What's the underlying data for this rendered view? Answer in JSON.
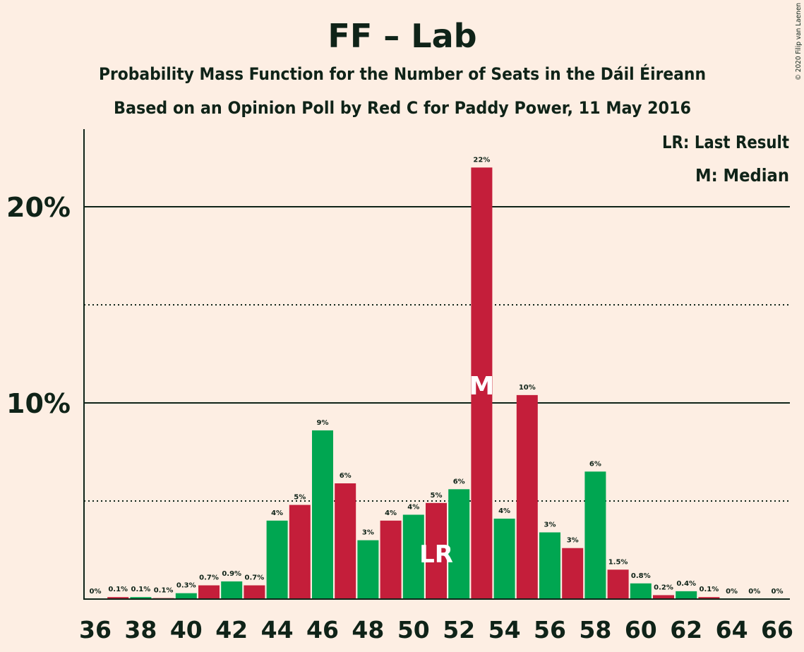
{
  "chart_data": {
    "type": "bar",
    "title": "FF – Lab",
    "subtitle1": "Probability Mass Function for the Number of Seats in the Dáil Éireann",
    "subtitle2": "Based on an Opinion Poll by Red C for Paddy Power, 11 May 2016",
    "copyright": "© 2020 Filip van Laenen",
    "legend": {
      "placement": "top-right",
      "entries": [
        "LR: Last Result",
        "M: Median"
      ]
    },
    "x": [
      36,
      37,
      38,
      39,
      40,
      41,
      42,
      43,
      44,
      45,
      46,
      47,
      48,
      49,
      50,
      51,
      52,
      53,
      54,
      55,
      56,
      57,
      58,
      59,
      60,
      61,
      62,
      63,
      64,
      65,
      66
    ],
    "values": [
      0,
      0.1,
      0.1,
      0.05,
      0.3,
      0.7,
      0.9,
      0.7,
      4.0,
      4.8,
      8.6,
      5.9,
      3.0,
      4.0,
      4.3,
      4.9,
      5.6,
      22.0,
      4.1,
      10.4,
      3.4,
      2.6,
      6.5,
      1.5,
      0.8,
      0.2,
      0.4,
      0.1,
      0,
      0,
      0
    ],
    "data_labels": [
      "0%",
      "0.1%",
      "0.1%",
      "0.1%",
      "0.3%",
      "0.7%",
      "0.9%",
      "0.7%",
      "4%",
      "5%",
      "9%",
      "6%",
      "3%",
      "4%",
      "4%",
      "5%",
      "6%",
      "22%",
      "4%",
      "10%",
      "3%",
      "3%",
      "6%",
      "1.5%",
      "0.8%",
      "0.2%",
      "0.4%",
      "0.1%",
      "0%",
      "0%",
      "0%"
    ],
    "colors": [
      "#00A651",
      "#C41E3A"
    ],
    "x_ticks": [
      "36",
      "38",
      "40",
      "42",
      "44",
      "46",
      "48",
      "50",
      "52",
      "54",
      "56",
      "58",
      "60",
      "62",
      "64",
      "66"
    ],
    "y_ticks": [
      "10%",
      "20%"
    ],
    "y_tick_values": [
      10,
      20
    ],
    "minor_grid_values": [
      5,
      15
    ],
    "ylim": [
      0,
      24
    ],
    "last_result_seat": 51,
    "last_result_label": "LR",
    "median_seat": 53,
    "median_label": "M"
  }
}
